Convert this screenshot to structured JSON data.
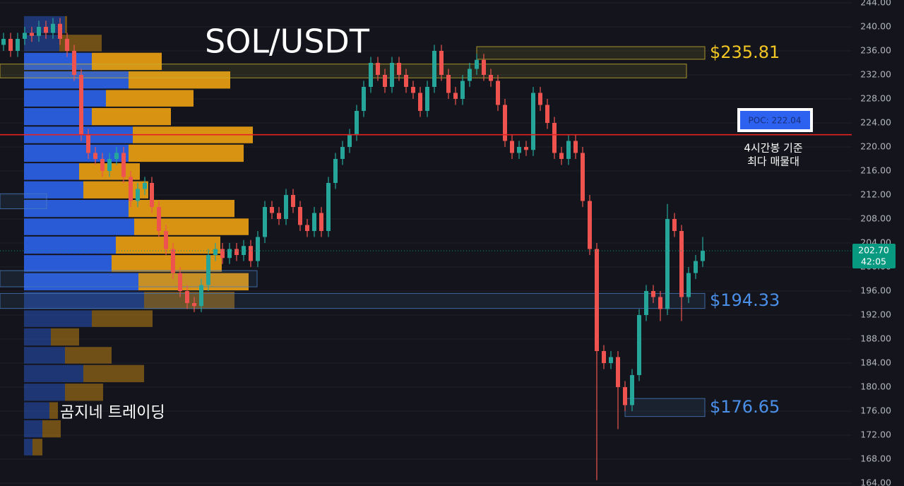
{
  "chart_data": {
    "type": "candlestick",
    "title": "SOL/USDT",
    "watermark": "곰지네 트레이딩",
    "up_color": "#26a69a",
    "down_color": "#ef5350",
    "ylim": [
      164,
      244
    ],
    "yticks": [
      {
        "value": 164,
        "label": "164.00"
      },
      {
        "value": 168,
        "label": "168.00"
      },
      {
        "value": 172,
        "label": "172.00"
      },
      {
        "value": 176,
        "label": "176.00"
      },
      {
        "value": 180,
        "label": "180.00"
      },
      {
        "value": 184,
        "label": "184.00"
      },
      {
        "value": 188,
        "label": "188.00"
      },
      {
        "value": 192,
        "label": "192.00"
      },
      {
        "value": 196,
        "label": "196.00"
      },
      {
        "value": 200,
        "label": "200.00"
      },
      {
        "value": 204,
        "label": "204.00"
      },
      {
        "value": 208,
        "label": "208.00"
      },
      {
        "value": 212,
        "label": "212.00"
      },
      {
        "value": 216,
        "label": "216.00"
      },
      {
        "value": 220,
        "label": "220.00"
      },
      {
        "value": 224,
        "label": "224.00"
      },
      {
        "value": 228,
        "label": "228.00"
      },
      {
        "value": 232,
        "label": "232.00"
      },
      {
        "value": 236,
        "label": "236.00"
      },
      {
        "value": 240,
        "label": "240.00"
      },
      {
        "value": 244,
        "label": "244.00"
      }
    ],
    "grid": true,
    "open": [
      237,
      238,
      236,
      238,
      239,
      238.5,
      240,
      239,
      240.5,
      238,
      236,
      232,
      222,
      219,
      218,
      216,
      218,
      219,
      215,
      211,
      213,
      214,
      210,
      206,
      203,
      199,
      196,
      194,
      193.5,
      197,
      202,
      203,
      201.5,
      203,
      202,
      203.5,
      201,
      205,
      210,
      209,
      208,
      212,
      210,
      207,
      206,
      209,
      206,
      214,
      218,
      220,
      222,
      226,
      230,
      234,
      232,
      230,
      234,
      232,
      230,
      229,
      226,
      230,
      236,
      232,
      229,
      228,
      231,
      233,
      234.5,
      232,
      231,
      227,
      221,
      219,
      220,
      219.5,
      229,
      227,
      224,
      219,
      218,
      221,
      219,
      211,
      203,
      186,
      184,
      185,
      180,
      177,
      182,
      192,
      196,
      195,
      193,
      208,
      206,
      195,
      199,
      201
    ],
    "high": [
      239,
      239,
      239,
      240,
      240,
      241,
      241,
      241.5,
      241.5,
      239,
      237,
      233,
      223,
      220,
      219,
      219,
      220,
      220,
      216,
      214,
      215,
      215,
      211,
      207,
      204,
      200,
      197,
      195,
      198,
      203,
      204,
      204,
      204,
      204,
      204.5,
      204.5,
      206,
      211,
      211,
      210,
      213,
      213,
      211,
      208,
      210,
      210,
      215,
      219,
      221,
      223,
      227,
      231,
      235,
      235,
      233,
      235,
      235,
      233,
      231,
      230,
      231,
      237,
      237,
      233,
      230,
      232,
      234,
      235.5,
      235.5,
      233,
      232,
      228,
      222,
      221,
      221,
      230,
      230,
      228,
      225,
      220,
      222,
      222,
      220,
      212,
      204,
      187,
      186,
      186,
      181,
      183,
      193,
      197,
      197,
      196,
      210.5,
      209,
      207,
      200,
      202,
      205
    ],
    "low": [
      236,
      235,
      235,
      237,
      237.5,
      237.5,
      238,
      238,
      237,
      235,
      231,
      221,
      218,
      217,
      215,
      215,
      217,
      214,
      210,
      210,
      212,
      209,
      205,
      202,
      198,
      195,
      193,
      192.5,
      192.5,
      196,
      201,
      200.5,
      200.5,
      201,
      201,
      200,
      200,
      204,
      208,
      207,
      207,
      209,
      206,
      205,
      205,
      205,
      205,
      213,
      217,
      219,
      221,
      225,
      229,
      231,
      229,
      229,
      231,
      229,
      228,
      225,
      225,
      229,
      231,
      228,
      227,
      227,
      230,
      232,
      231,
      230,
      226,
      220,
      218,
      218,
      218.5,
      218.5,
      226,
      223,
      218,
      217,
      217,
      218,
      210,
      202,
      164.5,
      183,
      183,
      173,
      176,
      176,
      181,
      191,
      194,
      191,
      192,
      205,
      191,
      194,
      198,
      200
    ],
    "close": [
      238,
      236,
      238,
      239,
      238.5,
      240,
      239,
      240.5,
      238,
      236,
      232,
      222,
      219,
      218,
      216,
      218,
      219,
      215,
      211,
      213,
      214,
      210,
      206,
      203,
      199,
      196,
      194,
      193.5,
      197,
      202,
      203,
      201.5,
      203,
      202,
      203.5,
      201,
      205,
      210,
      209,
      208,
      212,
      210,
      207,
      206,
      209,
      206,
      214,
      218,
      220,
      222,
      226,
      230,
      234,
      232,
      230,
      234,
      232,
      230,
      229,
      226,
      230,
      236,
      232,
      229,
      228,
      231,
      233,
      234.5,
      232,
      231,
      227,
      221,
      219,
      220,
      219.5,
      229,
      227,
      224,
      219,
      218,
      221,
      219,
      211,
      203,
      186,
      184,
      185,
      180,
      177,
      182,
      192,
      196,
      195,
      193,
      208,
      206,
      195,
      199,
      201,
      202.7
    ],
    "profile": {
      "buy_color": "#2b5fe0",
      "sell_color": "#e39a12",
      "bins": [
        241.9,
        238.8,
        235.8,
        232.7,
        229.6,
        226.6,
        223.5,
        220.5,
        217.4,
        214.4,
        211.3,
        208.2,
        205.2,
        202.1,
        199.1,
        196.0,
        192.9,
        189.9,
        186.8,
        183.8,
        180.7,
        177.6,
        174.6,
        171.5,
        168.5
      ],
      "buy": [
        58,
        50,
        96,
        148,
        116,
        96,
        154,
        148,
        78,
        84,
        148,
        156,
        130,
        124,
        162,
        170,
        96,
        38,
        58,
        84,
        58,
        36,
        26,
        12
      ],
      "sell": [
        3,
        60,
        99,
        144,
        124,
        112,
        170,
        163,
        86,
        92,
        150,
        162,
        148,
        156,
        156,
        128,
        86,
        40,
        66,
        86,
        54,
        12,
        26,
        14
      ]
    },
    "zones": [
      {
        "top": 236.7,
        "bottom": 234.6,
        "color": "#c9b233",
        "label": "$235.81",
        "label_color": "#f3c623"
      },
      {
        "top": 233.8,
        "bottom": 231.5,
        "color": "#c9b233"
      },
      {
        "top": 195.6,
        "bottom": 193.1,
        "color": "#4a7cc0",
        "label": "$194.33",
        "label_color": "#4a8fe8"
      },
      {
        "top": 178.1,
        "bottom": 175.1,
        "color": "#4a7cc0",
        "label": "$176.65",
        "label_color": "#4a8fe8"
      },
      {
        "top": 212.2,
        "bottom": 209.7,
        "color": "#4a7cc0"
      },
      {
        "top": 199.4,
        "bottom": 196.7,
        "color": "#4a7cc0"
      }
    ],
    "poc": {
      "value": 222.04,
      "label": "POC: 222.04",
      "color": "#e52222"
    },
    "annotation": [
      "4시간봉 기준",
      "최다 매물대"
    ],
    "last": {
      "value": 202.7,
      "label": "202.70",
      "countdown": "42:05",
      "color": "#089981"
    }
  }
}
